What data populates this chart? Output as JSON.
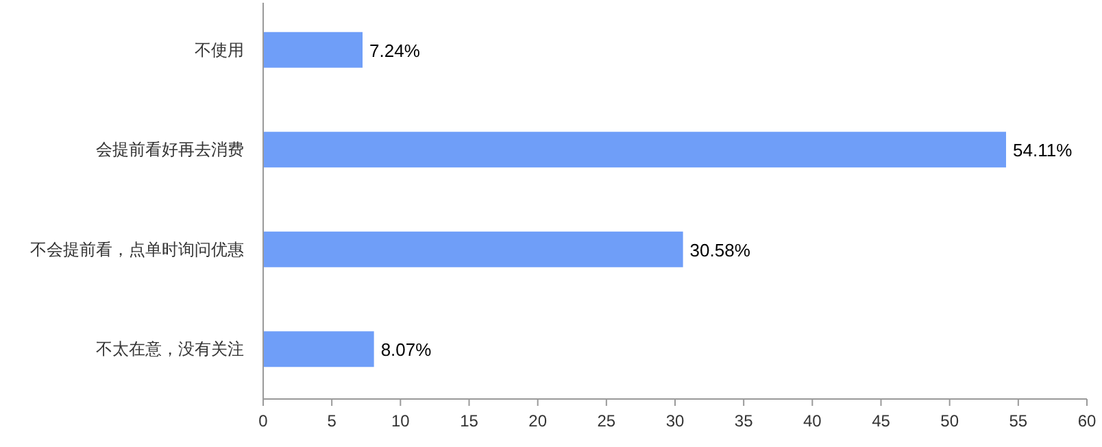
{
  "chart_data": {
    "type": "bar",
    "orientation": "horizontal",
    "categories": [
      "不使用",
      "会提前看好再去消费",
      "不会提前看，点单时询问优惠",
      "不太在意，没有关注"
    ],
    "values": [
      7.24,
      54.11,
      30.58,
      8.07
    ],
    "value_labels": [
      "7.24%",
      "54.11%",
      "30.58%",
      "8.07%"
    ],
    "color": "#6f9ef8",
    "xlim": [
      0,
      60
    ],
    "xticks": [
      0,
      5,
      10,
      15,
      20,
      25,
      30,
      35,
      40,
      45,
      50,
      55,
      60
    ]
  }
}
